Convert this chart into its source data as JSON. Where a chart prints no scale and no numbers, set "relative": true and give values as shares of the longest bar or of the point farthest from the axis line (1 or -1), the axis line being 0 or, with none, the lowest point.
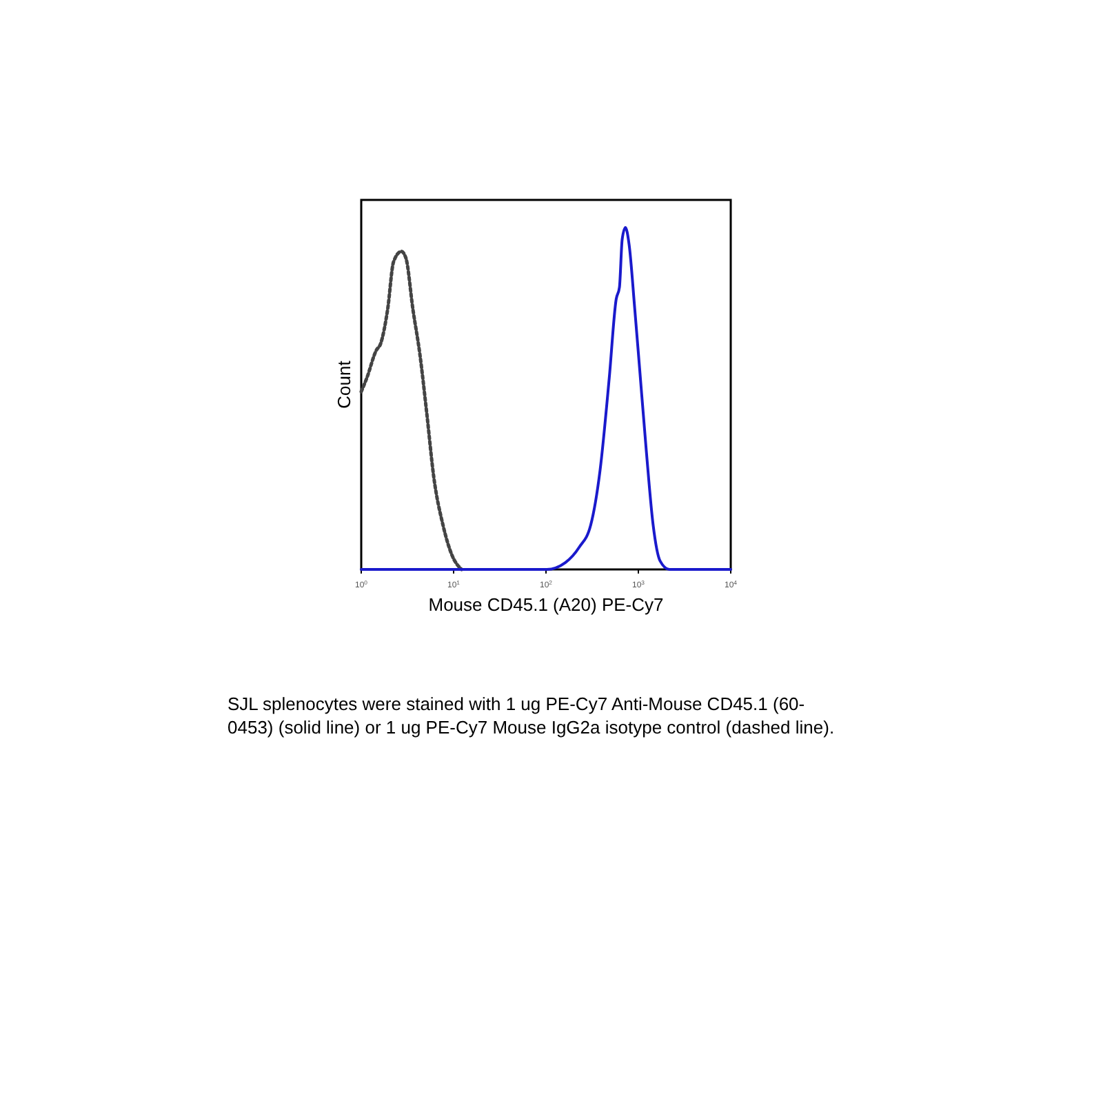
{
  "chart_data": {
    "type": "line",
    "relative": true,
    "log": "x",
    "xlabel": "Mouse CD45.1 (A20) PE-Cy7",
    "ylabel": "Count",
    "xlim": [
      1,
      10000
    ],
    "xticks": [
      {
        "value": 1,
        "label": "10$^{0}$"
      },
      {
        "value": 10,
        "label": "10$^{1}$"
      },
      {
        "value": 100,
        "label": "10$^{2}$"
      },
      {
        "value": 1000,
        "label": "10$^{3}$"
      },
      {
        "value": 10000,
        "label": "10$^{4}$"
      }
    ],
    "series": [
      {
        "color": "#444444",
        "line_style": "dotted",
        "x": [
          1,
          1.15,
          1.45,
          1.62,
          1.93,
          2.24,
          2.72,
          3.05,
          3.63,
          4.31,
          5.13,
          6.1,
          7.67,
          9.66,
          12.2
        ],
        "values": [
          0.52,
          0.56,
          0.64,
          0.66,
          0.76,
          0.9,
          0.93,
          0.91,
          0.76,
          0.63,
          0.455,
          0.27,
          0.13,
          0.04,
          0
        ]
      },
      {
        "color": "#1a1acc",
        "line_style": "solid",
        "x": [
          1,
          102,
          162,
          229,
          305,
          385,
          484,
          575,
          624,
          668,
          724,
          794,
          912,
          1023,
          1216,
          1445,
          1718,
          2163,
          10000
        ],
        "values": [
          0,
          0,
          0.02,
          0.065,
          0.13,
          0.29,
          0.56,
          0.79,
          0.825,
          0.965,
          1,
          0.95,
          0.765,
          0.6,
          0.35,
          0.13,
          0.025,
          0,
          0
        ]
      }
    ],
    "annotations": [
      "SJL splenocytes were stained with 1 ug PE-Cy7 Anti-Mouse CD45.1 (60-0453) (solid line) or 1 ug PE-Cy7 Mouse IgG2a isotype control (dashed line)."
    ]
  }
}
